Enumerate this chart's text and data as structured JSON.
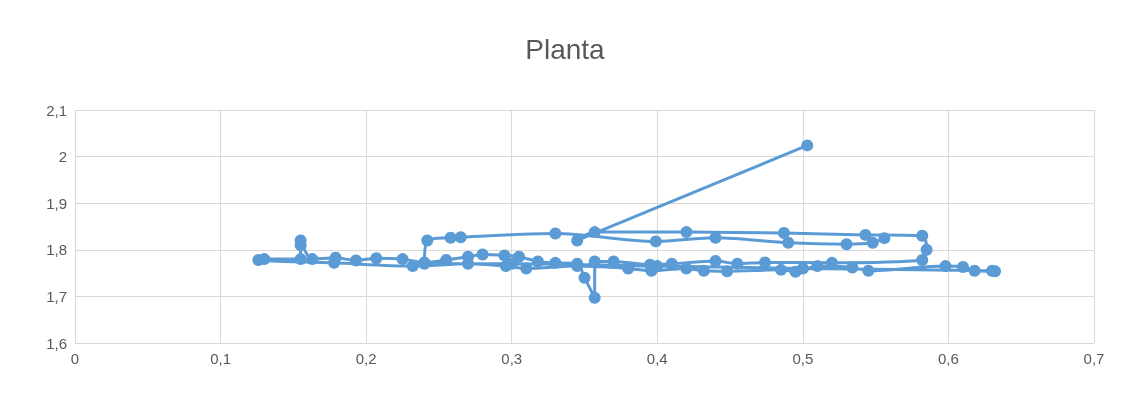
{
  "chart_data": {
    "type": "line",
    "title": "Planta",
    "marker": "circle",
    "line_style": "solid",
    "grid": true,
    "xlim": [
      0,
      0.7
    ],
    "xticks": [
      0,
      {
        "value": 0.1,
        "label": "0,1"
      },
      {
        "value": 0.2,
        "label": "0,2"
      },
      {
        "value": 0.3,
        "label": "0,3"
      },
      {
        "value": 0.4,
        "label": "0,4"
      },
      {
        "value": 0.5,
        "label": "0,5"
      },
      {
        "value": 0.6,
        "label": "0,6"
      },
      {
        "value": 0.7,
        "label": "0,7"
      }
    ],
    "ylim": [
      1.6,
      2.1
    ],
    "yticks": [
      {
        "value": 1.6,
        "label": "1,6"
      },
      {
        "value": 1.7,
        "label": "1,7"
      },
      {
        "value": 1.8,
        "label": "1,8"
      },
      {
        "value": 1.9,
        "label": "1,9"
      },
      2,
      {
        "value": 2.1,
        "label": "2,1"
      }
    ],
    "series": [
      {
        "color": "#5b9bd5",
        "x": [
          0.503,
          0.345,
          0.357,
          0.42,
          0.487,
          0.543,
          0.582,
          0.585,
          0.582,
          0.52,
          0.474,
          0.455,
          0.44,
          0.41,
          0.395,
          0.37,
          0.357,
          0.357,
          0.35,
          0.345,
          0.33,
          0.318,
          0.305,
          0.295,
          0.28,
          0.27,
          0.255,
          0.24,
          0.225,
          0.207,
          0.193,
          0.179,
          0.163,
          0.155,
          0.155,
          0.155,
          0.13,
          0.126,
          0.178,
          0.232,
          0.27,
          0.296,
          0.31,
          0.345,
          0.38,
          0.396,
          0.42,
          0.432,
          0.448,
          0.485,
          0.495,
          0.51,
          0.534,
          0.545,
          0.598,
          0.61,
          0.618,
          0.632,
          0.63,
          0.5,
          0.4,
          0.3,
          0.24,
          0.242,
          0.258,
          0.265,
          0.33,
          0.399,
          0.44,
          0.49,
          0.53,
          0.548,
          0.556
        ],
        "values": [
          2.024,
          1.82,
          1.838,
          1.838,
          1.836,
          1.832,
          1.83,
          1.8,
          1.778,
          1.772,
          1.773,
          1.77,
          1.776,
          1.77,
          1.768,
          1.775,
          1.775,
          1.697,
          1.74,
          1.77,
          1.772,
          1.775,
          1.785,
          1.788,
          1.79,
          1.785,
          1.778,
          1.773,
          1.78,
          1.782,
          1.777,
          1.783,
          1.78,
          1.82,
          1.81,
          1.78,
          1.78,
          1.778,
          1.772,
          1.765,
          1.77,
          1.765,
          1.76,
          1.765,
          1.76,
          1.755,
          1.76,
          1.755,
          1.754,
          1.757,
          1.753,
          1.765,
          1.762,
          1.755,
          1.765,
          1.763,
          1.755,
          1.754,
          1.755,
          1.76,
          1.765,
          1.77,
          1.77,
          1.82,
          1.826,
          1.827,
          1.835,
          1.818,
          1.826,
          1.815,
          1.812,
          1.815,
          1.825
        ]
      }
    ]
  }
}
